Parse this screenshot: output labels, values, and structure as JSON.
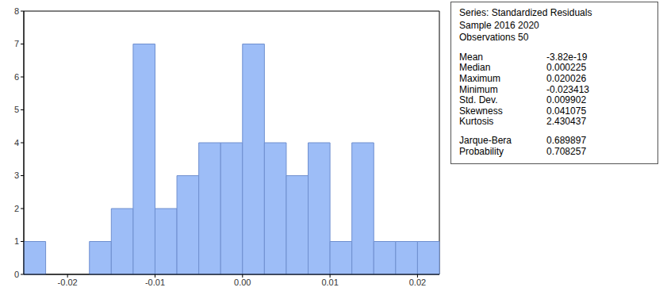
{
  "chart_data": {
    "type": "histogram",
    "bins": [
      -0.025,
      -0.0225,
      -0.02,
      -0.0175,
      -0.015,
      -0.0125,
      -0.01,
      -0.0075,
      -0.005,
      -0.0025,
      0,
      0.0025,
      0.005,
      0.0075,
      0.01,
      0.0125,
      0.015,
      0.0175,
      0.02,
      0.0225
    ],
    "counts": [
      1,
      0,
      0,
      1,
      2,
      7,
      2,
      3,
      4,
      4,
      7,
      4,
      3,
      4,
      1,
      4,
      1,
      1,
      1
    ],
    "color": "#9dbdf7",
    "xlim": [
      -0.025,
      0.0225
    ],
    "xticks": [
      -0.02,
      -0.01,
      {
        "value": 0,
        "label": "0.00"
      },
      0.01,
      0.02
    ],
    "ylim": [
      0,
      8
    ],
    "yticks": [
      0,
      1,
      2,
      3,
      4,
      5,
      6,
      7,
      8
    ],
    "grid": false
  },
  "stats": {
    "header": [
      "Series: Standardized Residuals",
      "Sample 2016 2020",
      "Observations 50"
    ],
    "rows": [
      [
        "Mean",
        "-3.82e-19"
      ],
      [
        "Median",
        "0.000225"
      ],
      [
        "Maximum",
        "0.020026"
      ],
      [
        "Minimum",
        "-0.023413"
      ],
      [
        "Std. Dev.",
        "0.009902"
      ],
      [
        "Skewness",
        "0.041075"
      ],
      [
        "Kurtosis",
        "2.430437"
      ]
    ],
    "test_rows": [
      [
        "Jarque-Bera",
        "0.689897"
      ],
      [
        "Probability",
        "0.708257"
      ]
    ]
  }
}
